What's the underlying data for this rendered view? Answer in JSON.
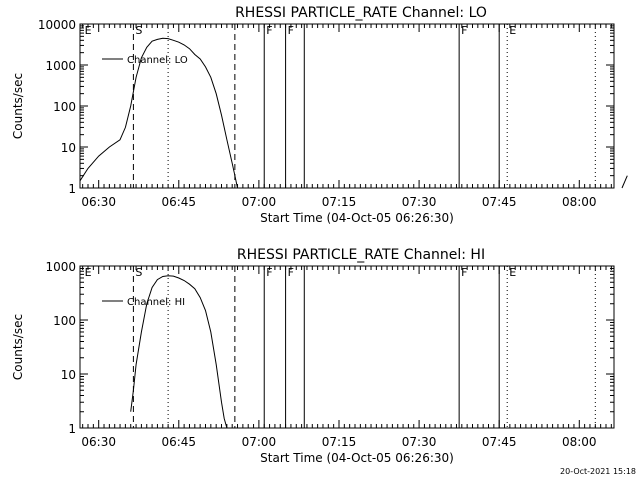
{
  "stamp": "20-Oct-2021 15:18",
  "chart_data": [
    {
      "type": "line",
      "title": "RHESSI PARTICLE_RATE Channel: LO",
      "xlabel": "Start Time (04-Oct-05 06:26:30)",
      "ylabel": "Counts/sec",
      "yscale": "log",
      "ylim": [
        1,
        10000
      ],
      "xlim": [
        "06:26:30",
        "08:06:30"
      ],
      "ytick_labels": [
        "1",
        "10",
        "100",
        "1000",
        "10000"
      ],
      "xtick_labels": [
        "06:30",
        "06:45",
        "07:00",
        "07:15",
        "07:30",
        "07:45",
        "08:00"
      ],
      "legend": {
        "position": "top-left",
        "entries": [
          "Channel: LO"
        ]
      },
      "series": [
        {
          "name": "Channel: LO",
          "x": [
            "06:26:30",
            "06:28:00",
            "06:30:00",
            "06:32:00",
            "06:34:00",
            "06:35:00",
            "06:36:00",
            "06:37:00",
            "06:38:00",
            "06:39:00",
            "06:40:00",
            "06:41:00",
            "06:42:00",
            "06:43:00",
            "06:44:00",
            "06:45:00",
            "06:46:00",
            "06:47:00",
            "06:48:00",
            "06:49:00",
            "06:50:00",
            "06:51:00",
            "06:52:00",
            "06:53:00",
            "06:54:00",
            "06:55:00",
            "06:55:30",
            "06:56:00"
          ],
          "y": [
            1.5,
            3,
            6,
            10,
            15,
            30,
            100,
            500,
            1500,
            2700,
            3800,
            4200,
            4500,
            4400,
            4000,
            3600,
            3100,
            2500,
            1800,
            1400,
            900,
            500,
            200,
            60,
            15,
            4,
            2,
            1
          ]
        },
        {
          "name": "",
          "x": [
            "08:08:00",
            "08:09:00"
          ],
          "y": [
            1,
            2
          ]
        }
      ],
      "markers": [
        {
          "label": "E",
          "time": "06:27:00",
          "style": "none"
        },
        {
          "label": "S",
          "time": "06:36:30",
          "style": "dashed"
        },
        {
          "label": "",
          "time": "06:43:00",
          "style": "dotted"
        },
        {
          "label": "",
          "time": "06:55:30",
          "style": "dashed"
        },
        {
          "label": "F",
          "time": "07:01:00",
          "style": "solid"
        },
        {
          "label": "F",
          "time": "07:05:00",
          "style": "solid"
        },
        {
          "label": "",
          "time": "07:08:30",
          "style": "solid"
        },
        {
          "label": "F",
          "time": "07:37:30",
          "style": "solid"
        },
        {
          "label": "",
          "time": "07:45:00",
          "style": "solid"
        },
        {
          "label": "E",
          "time": "07:46:30",
          "style": "dotted"
        },
        {
          "label": "",
          "time": "08:03:00",
          "style": "dotted"
        }
      ]
    },
    {
      "type": "line",
      "title": "RHESSI PARTICLE_RATE Channel: HI",
      "xlabel": "Start Time (04-Oct-05 06:26:30)",
      "ylabel": "Counts/sec",
      "yscale": "log",
      "ylim": [
        1,
        1000
      ],
      "xlim": [
        "06:26:30",
        "08:06:30"
      ],
      "ytick_labels": [
        "1",
        "10",
        "100",
        "1000"
      ],
      "xtick_labels": [
        "06:30",
        "06:45",
        "07:00",
        "07:15",
        "07:30",
        "07:45",
        "08:00"
      ],
      "legend": {
        "position": "top-left",
        "entries": [
          "Channel: HI"
        ]
      },
      "series": [
        {
          "name": "Channel: HI",
          "x": [
            "06:36:00",
            "06:36:30",
            "06:37:00",
            "06:38:00",
            "06:39:00",
            "06:40:00",
            "06:41:00",
            "06:42:00",
            "06:43:00",
            "06:44:00",
            "06:45:00",
            "06:46:00",
            "06:47:00",
            "06:48:00",
            "06:49:00",
            "06:50:00",
            "06:51:00",
            "06:52:00",
            "06:53:00",
            "06:53:30",
            "06:54:00"
          ],
          "y": [
            2,
            5,
            15,
            60,
            200,
            400,
            560,
            640,
            660,
            650,
            600,
            540,
            460,
            380,
            260,
            150,
            60,
            15,
            3,
            1.5,
            1
          ]
        }
      ],
      "markers": [
        {
          "label": "E",
          "time": "06:27:00",
          "style": "none"
        },
        {
          "label": "S",
          "time": "06:36:30",
          "style": "dashed"
        },
        {
          "label": "",
          "time": "06:43:00",
          "style": "dotted"
        },
        {
          "label": "",
          "time": "06:55:30",
          "style": "dashed"
        },
        {
          "label": "F",
          "time": "07:01:00",
          "style": "solid"
        },
        {
          "label": "F",
          "time": "07:05:00",
          "style": "solid"
        },
        {
          "label": "",
          "time": "07:08:30",
          "style": "solid"
        },
        {
          "label": "F",
          "time": "07:37:30",
          "style": "solid"
        },
        {
          "label": "",
          "time": "07:45:00",
          "style": "solid"
        },
        {
          "label": "E",
          "time": "07:46:30",
          "style": "dotted"
        },
        {
          "label": "",
          "time": "08:03:00",
          "style": "dotted"
        }
      ]
    }
  ]
}
